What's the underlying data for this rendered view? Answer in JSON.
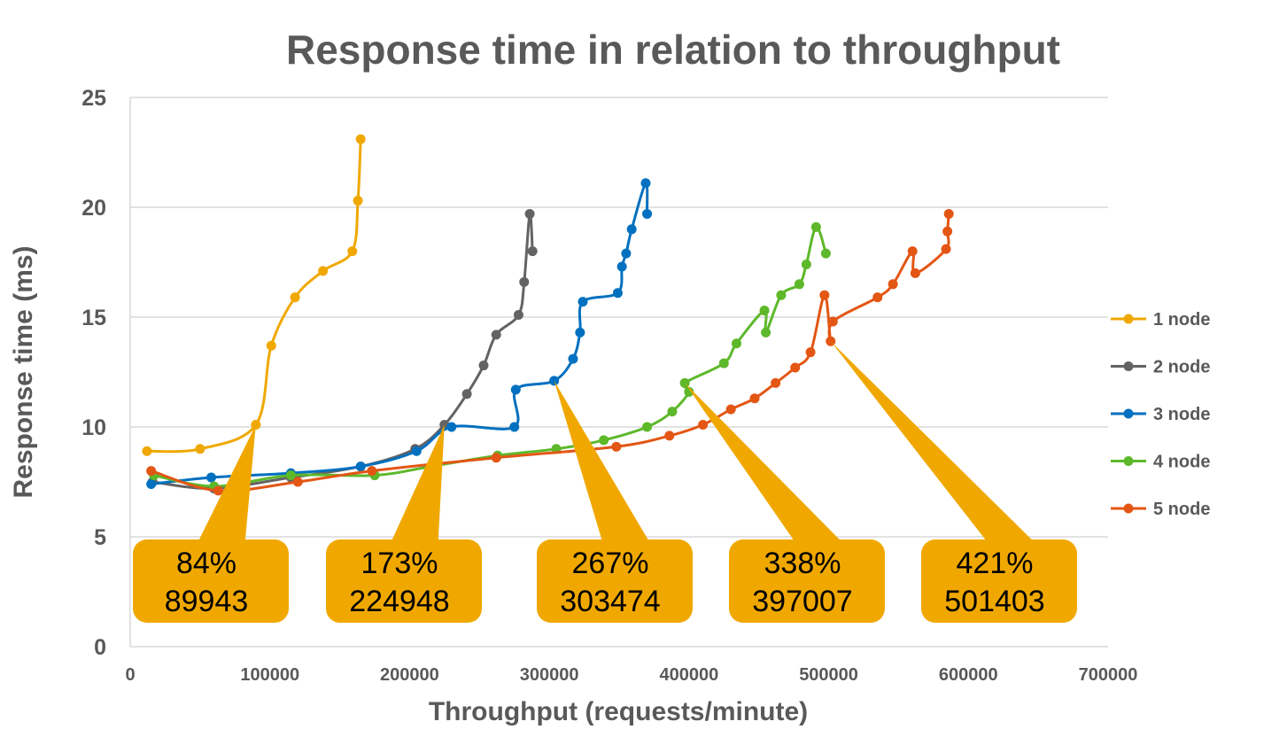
{
  "chart_data": {
    "type": "line",
    "title": "Response time in relation to throughput",
    "xlabel": "Throughput (requests/minute)",
    "ylabel": "Response time (ms)",
    "xlim": [
      0,
      700000
    ],
    "ylim": [
      0,
      25
    ],
    "xticks": [
      0,
      100000,
      200000,
      300000,
      400000,
      500000,
      600000,
      700000
    ],
    "yticks": [
      0,
      5,
      10,
      15,
      20,
      25
    ],
    "grid": "horizontal",
    "legend_position": "right",
    "series": [
      {
        "name": "1 node",
        "color": "#F0A800",
        "x": [
          12000,
          50000,
          89943,
          101000,
          118000,
          138000,
          159000,
          163000,
          165000
        ],
        "y": [
          8.9,
          9.0,
          10.1,
          13.7,
          15.9,
          17.1,
          18.0,
          20.3,
          23.1
        ]
      },
      {
        "name": "2 node",
        "color": "#636363",
        "x": [
          16000,
          60000,
          115000,
          165000,
          204000,
          224948,
          241000,
          253000,
          262000,
          278000,
          282000,
          286000,
          288000
        ],
        "y": [
          7.5,
          7.2,
          7.7,
          8.2,
          9.0,
          10.1,
          11.5,
          12.8,
          14.2,
          15.1,
          16.6,
          19.7,
          18.0
        ]
      },
      {
        "name": "3 node",
        "color": "#0070C0",
        "x": [
          15000,
          58000,
          115000,
          165000,
          205000,
          230000,
          275000,
          276000,
          303474,
          317000,
          322000,
          324000,
          349000,
          352000,
          355000,
          359000,
          369000,
          370000
        ],
        "y": [
          7.4,
          7.7,
          7.9,
          8.2,
          8.9,
          10.0,
          10.0,
          11.7,
          12.1,
          13.1,
          14.3,
          15.7,
          16.1,
          17.3,
          17.9,
          19.0,
          21.1,
          19.7
        ]
      },
      {
        "name": "4 node",
        "color": "#5DB82A",
        "x": [
          17000,
          60000,
          115000,
          175000,
          215000,
          263000,
          305000,
          339000,
          370000,
          388000,
          400000,
          397007,
          425000,
          434000,
          454000,
          455000,
          466000,
          479000,
          484000,
          491000,
          498000
        ],
        "y": [
          7.8,
          7.3,
          7.8,
          7.8,
          8.2,
          8.7,
          9.0,
          9.4,
          10.0,
          10.7,
          11.6,
          12.0,
          12.9,
          13.8,
          15.3,
          14.3,
          16.0,
          16.5,
          17.4,
          19.1,
          17.9
        ]
      },
      {
        "name": "5 node",
        "color": "#E35614",
        "x": [
          15000,
          63000,
          120000,
          173000,
          262000,
          348000,
          386000,
          410000,
          430000,
          447000,
          462000,
          476000,
          487000,
          497000,
          501403,
          503000,
          535000,
          546000,
          560000,
          562000,
          584000,
          585000,
          586000
        ],
        "y": [
          8.0,
          7.1,
          7.5,
          8.0,
          8.6,
          9.1,
          9.6,
          10.1,
          10.8,
          11.3,
          12.0,
          12.7,
          13.4,
          16.0,
          13.9,
          14.8,
          15.9,
          16.5,
          18.0,
          17.0,
          18.1,
          18.9,
          19.7
        ]
      }
    ],
    "annotations": [
      {
        "line1": "84%",
        "line2": "89943",
        "x": 89943,
        "y": 10.1
      },
      {
        "line1": "173%",
        "line2": "224948",
        "x": 224948,
        "y": 10.1
      },
      {
        "line1": "267%",
        "line2": "303474",
        "x": 303474,
        "y": 12.1
      },
      {
        "line1": "338%",
        "line2": "397007",
        "x": 397007,
        "y": 12.0
      },
      {
        "line1": "421%",
        "line2": "501403",
        "x": 501403,
        "y": 13.9
      }
    ],
    "annotation_color": "#F0A800"
  }
}
